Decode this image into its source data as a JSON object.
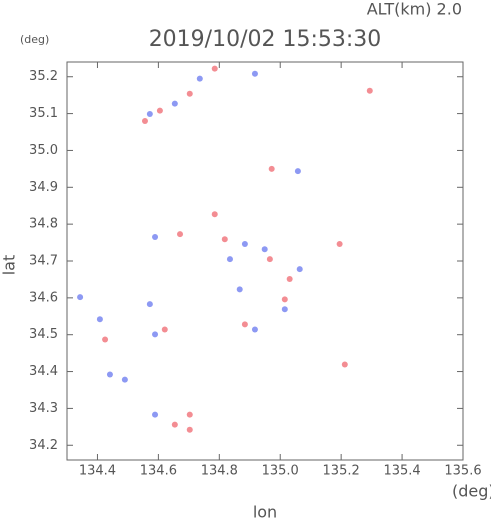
{
  "chart_data": {
    "type": "scatter",
    "title": "2019/10/02 15:53:30",
    "annotation": "ALT(km)  2.0",
    "y_unit": "(deg)",
    "x_unit": "(deg)",
    "xlabel": "lon",
    "ylabel": "lat",
    "xlim": [
      134.3,
      135.6
    ],
    "ylim": [
      34.16,
      35.24
    ],
    "xticks": [
      134.4,
      134.6,
      134.8,
      {
        "value": 135.0,
        "label": "135.0"
      },
      135.2,
      135.4,
      135.6
    ],
    "yticks": [
      34.2,
      34.3,
      34.4,
      34.5,
      34.6,
      34.7,
      34.8,
      34.9,
      {
        "value": 35.0,
        "label": "35.0"
      },
      35.1,
      35.2
    ],
    "series": [
      {
        "color": "#f07078",
        "x": [
          134.785,
          134.703,
          134.605,
          134.556,
          135.294,
          134.972,
          134.785,
          134.818,
          134.671,
          134.966,
          135.031,
          135.015,
          134.884,
          135.195,
          135.212,
          134.425,
          134.621,
          134.654,
          134.703,
          134.703
        ],
        "values": [
          35.222,
          35.154,
          35.108,
          35.08,
          35.162,
          34.95,
          34.827,
          34.759,
          34.773,
          34.705,
          34.651,
          34.596,
          34.528,
          34.746,
          34.419,
          34.487,
          34.514,
          34.256,
          34.242,
          34.283
        ]
      },
      {
        "color": "#7080f0",
        "x": [
          134.736,
          134.654,
          134.572,
          134.917,
          135.058,
          134.884,
          134.949,
          134.589,
          134.867,
          135.015,
          134.917,
          134.343,
          134.408,
          134.49,
          134.441,
          134.572,
          134.589,
          134.589,
          134.835,
          135.064
        ],
        "values": [
          35.195,
          35.127,
          35.099,
          35.208,
          34.944,
          34.746,
          34.732,
          34.765,
          34.623,
          34.569,
          34.514,
          34.602,
          34.542,
          34.378,
          34.392,
          34.583,
          34.501,
          34.283,
          34.705,
          34.678
        ]
      }
    ]
  }
}
